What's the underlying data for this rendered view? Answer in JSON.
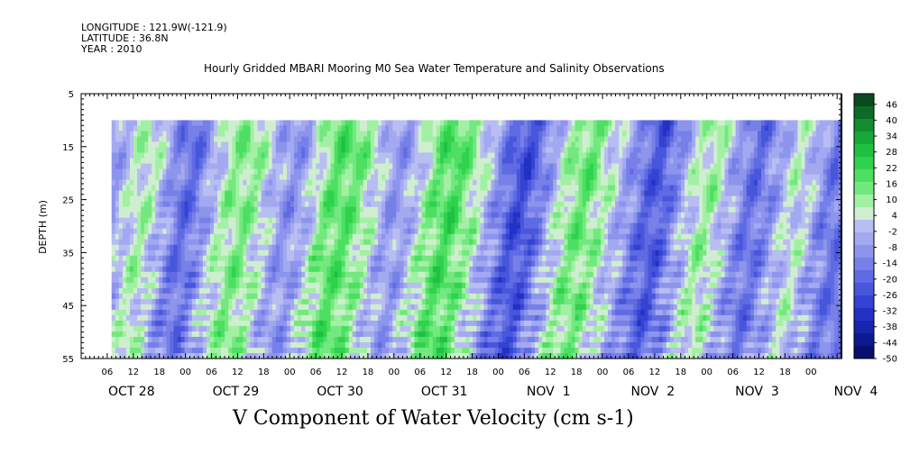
{
  "header": {
    "longitude": "LONGITUDE : 121.9W(-121.9)",
    "latitude": "LATITUDE : 36.8N",
    "year": "YEAR : 2010",
    "title": "Hourly Gridded MBARI Mooring M0 Sea Water Temperature and Salinity Observations"
  },
  "chart_data": {
    "type": "heatmap",
    "title": "Hourly Gridded MBARI Mooring M0 Sea Water Temperature and Salinity Observations",
    "xlabel": "",
    "ylabel": "DEPTH (m)",
    "variable_label": "V Component of Water Velocity (cm s-1)",
    "y_ticks": [
      5,
      15,
      25,
      35,
      45,
      55
    ],
    "y_range": [
      5,
      55
    ],
    "data_depth_range": [
      10,
      55
    ],
    "x_hour_labels": [
      "06",
      "12",
      "18",
      "00",
      "06",
      "12",
      "18",
      "00",
      "06",
      "12",
      "18",
      "00",
      "06",
      "12",
      "18",
      "00",
      "06",
      "12",
      "18",
      "00",
      "06",
      "12",
      "18",
      "00",
      "06",
      "12",
      "18",
      "00"
    ],
    "x_date_labels": [
      "OCT 28",
      "OCT 29",
      "OCT 30",
      "OCT 31",
      "NOV  1",
      "NOV  2",
      "NOV  3",
      "NOV  4"
    ],
    "x_range_hours": [
      0,
      175
    ],
    "data_start_hour": 7,
    "colorbar_levels": [
      "46",
      "40",
      "34",
      "28",
      "22",
      "16",
      "10",
      "4",
      "-2",
      "-8",
      "-14",
      "-20",
      "-26",
      "-32",
      "-38",
      "-44",
      "-50"
    ],
    "colorbar_range": [
      -50,
      50
    ],
    "colorbar_colors": [
      "#0a4a1e",
      "#0e6b27",
      "#138b31",
      "#18a83a",
      "#1fc043",
      "#2fd24d",
      "#4cdf62",
      "#73e87f",
      "#a2f0a4",
      "#cfeecf",
      "#b8bdf2",
      "#a3a9f0",
      "#8d94ec",
      "#7680e8",
      "#5f6be2",
      "#4856dc",
      "#3443d2",
      "#2331c4",
      "#1724ad",
      "#0d1990",
      "#080f6c"
    ],
    "column_pattern": [
      -10,
      -4,
      3,
      8,
      4,
      -6,
      -16,
      -18,
      -9,
      2,
      9,
      13,
      10,
      3,
      -5,
      -10,
      -6,
      4,
      14,
      18,
      16,
      10,
      2,
      -6,
      -8,
      -2,
      8,
      16,
      20,
      15,
      8,
      -1,
      -12,
      -22,
      -26,
      -18,
      -6,
      5,
      12,
      16,
      10,
      3,
      -4,
      -12,
      -20,
      -24,
      -14,
      -3,
      6,
      10,
      4,
      -6,
      -15,
      -18,
      -10,
      -2,
      5,
      2,
      -8,
      -16
    ]
  },
  "footer": {
    "variable_label": "V Component of Water Velocity (cm s-1)"
  }
}
